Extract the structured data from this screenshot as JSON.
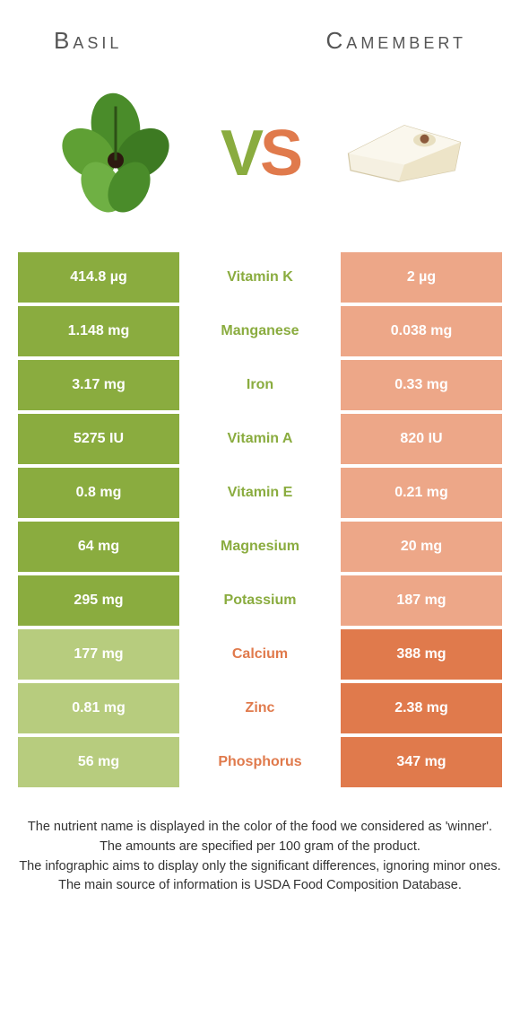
{
  "food_a": {
    "name": "Basil"
  },
  "food_b": {
    "name": "Camembert"
  },
  "vs": {
    "v": "V",
    "s": "S"
  },
  "colors": {
    "green": "#8aac3f",
    "green_lt": "#b7cc7e",
    "orange": "#e07a4c",
    "orange_lt": "#eda788"
  },
  "rows": [
    {
      "nutrient": "Vitamin K",
      "a": "414.8 µg",
      "b": "2 µg",
      "winner": "a"
    },
    {
      "nutrient": "Manganese",
      "a": "1.148 mg",
      "b": "0.038 mg",
      "winner": "a"
    },
    {
      "nutrient": "Iron",
      "a": "3.17 mg",
      "b": "0.33 mg",
      "winner": "a"
    },
    {
      "nutrient": "Vitamin A",
      "a": "5275 IU",
      "b": "820 IU",
      "winner": "a"
    },
    {
      "nutrient": "Vitamin E",
      "a": "0.8 mg",
      "b": "0.21 mg",
      "winner": "a"
    },
    {
      "nutrient": "Magnesium",
      "a": "64 mg",
      "b": "20 mg",
      "winner": "a"
    },
    {
      "nutrient": "Potassium",
      "a": "295 mg",
      "b": "187 mg",
      "winner": "a"
    },
    {
      "nutrient": "Calcium",
      "a": "177 mg",
      "b": "388 mg",
      "winner": "b"
    },
    {
      "nutrient": "Zinc",
      "a": "0.81 mg",
      "b": "2.38 mg",
      "winner": "b"
    },
    {
      "nutrient": "Phosphorus",
      "a": "56 mg",
      "b": "347 mg",
      "winner": "b"
    }
  ],
  "caption": {
    "line1": "The nutrient name is displayed in the color of the food we considered as 'winner'.",
    "line2": "The amounts are specified per 100 gram of the product.",
    "line3": "The infographic aims to display only the significant differences, ignoring minor ones.",
    "line4": "The main source of information is USDA Food Composition Database."
  }
}
